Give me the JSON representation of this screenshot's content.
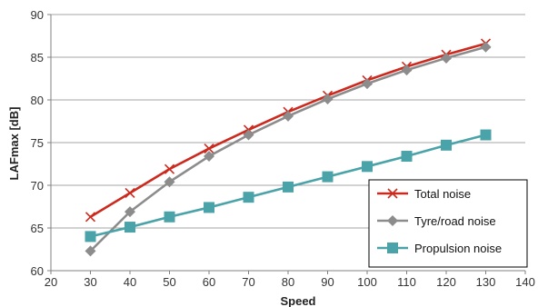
{
  "chart_data": {
    "type": "line",
    "xlabel": "Speed",
    "ylabel": "LAFmax [dB]",
    "xlim": [
      20,
      140
    ],
    "ylim": [
      60,
      90
    ],
    "xticks": [
      20,
      30,
      40,
      50,
      60,
      70,
      80,
      90,
      100,
      110,
      120,
      130,
      140
    ],
    "yticks": [
      60,
      65,
      70,
      75,
      80,
      85,
      90
    ],
    "grid": "horizontal",
    "legend_position": "bottom-right",
    "x": [
      30,
      40,
      50,
      60,
      70,
      80,
      90,
      100,
      110,
      120,
      130
    ],
    "series": [
      {
        "name": "Total noise",
        "color": "#cc2a1e",
        "marker": "x",
        "values": [
          66.3,
          69.1,
          71.9,
          74.3,
          76.5,
          78.6,
          80.5,
          82.3,
          83.9,
          85.3,
          86.6
        ]
      },
      {
        "name": "Tyre/road noise",
        "color": "#8c8c8c",
        "marker": "diamond",
        "values": [
          62.3,
          66.9,
          70.4,
          73.4,
          75.9,
          78.1,
          80.1,
          81.9,
          83.5,
          84.9,
          86.2
        ]
      },
      {
        "name": "Propulsion noise",
        "color": "#4aa3a8",
        "marker": "square",
        "values": [
          64.0,
          65.1,
          66.3,
          67.4,
          68.6,
          69.8,
          71.0,
          72.2,
          73.4,
          74.7,
          75.9
        ]
      }
    ]
  }
}
